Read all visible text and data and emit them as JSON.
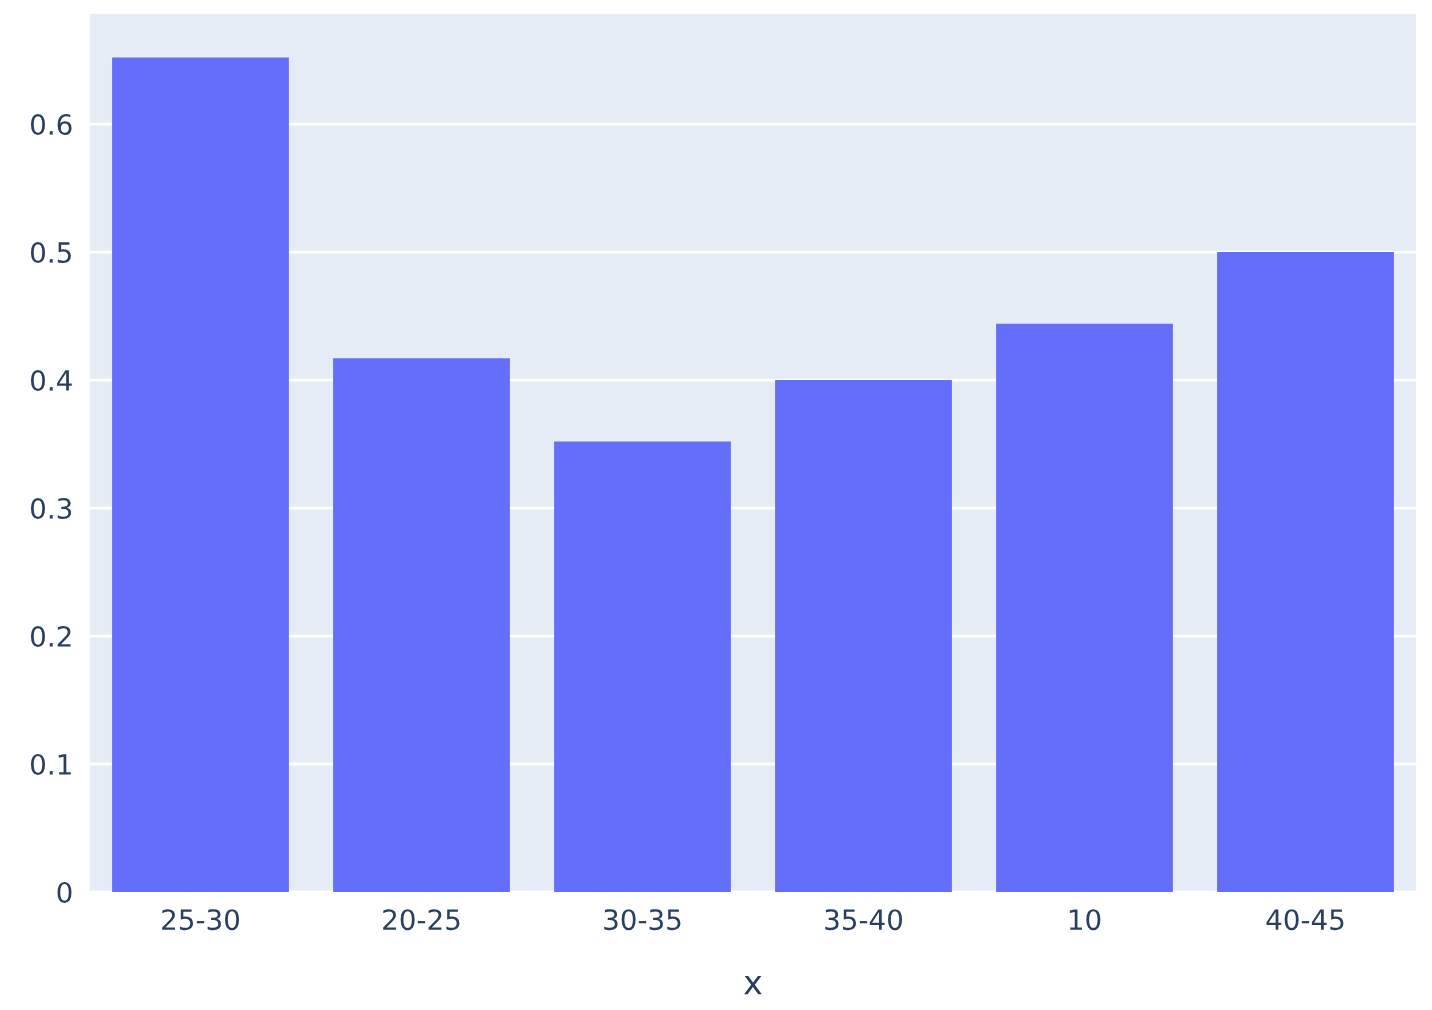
{
  "chart_data": {
    "type": "bar",
    "xlabel": "x",
    "categories": [
      "25-30",
      "20-25",
      "30-35",
      "35-40",
      "10",
      "40-45"
    ],
    "values": [
      0.652,
      0.417,
      0.352,
      0.4,
      0.444,
      0.5
    ],
    "color": "#636efa",
    "ylim": [
      0,
      0.686
    ],
    "yticks": [
      0,
      0.1,
      0.2,
      0.3,
      0.4,
      0.5,
      0.6
    ],
    "grid": "y"
  }
}
